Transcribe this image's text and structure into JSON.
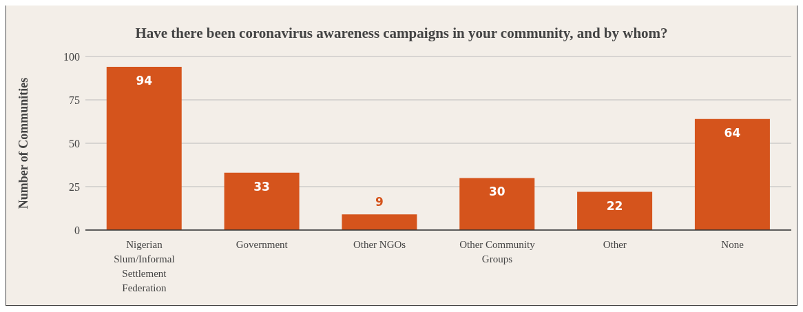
{
  "chart_data": {
    "type": "bar",
    "title": "Have there been coronavirus awareness campaigns in your community, and by whom?",
    "ylabel": "Number of Communities",
    "categories": [
      "Nigerian Slum/Informal Settlement Federation",
      "Government",
      "Other NGOs",
      "Other Community Groups",
      "Other",
      "None"
    ],
    "values": [
      94,
      33,
      9,
      30,
      22,
      64
    ],
    "color": "#d5541c",
    "ylim": [
      0,
      100
    ],
    "yticks": [
      0,
      25,
      50,
      75,
      100
    ],
    "grid": "y",
    "data_labels": true
  }
}
